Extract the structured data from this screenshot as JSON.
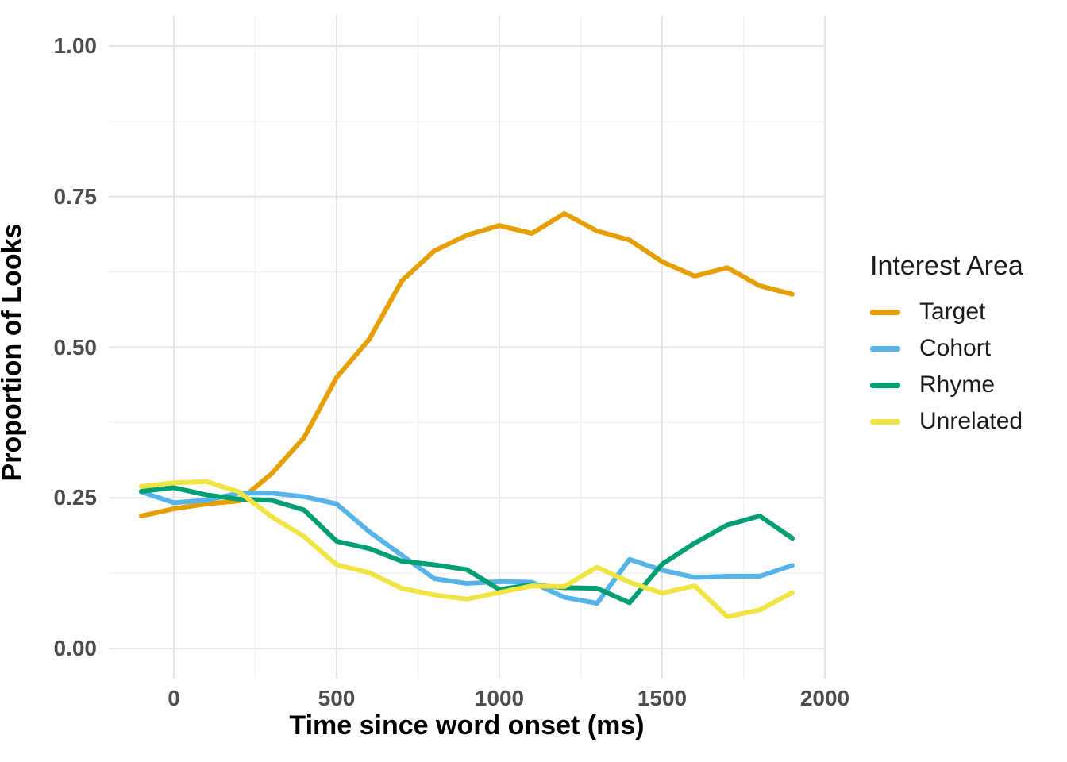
{
  "chart_data": {
    "type": "line",
    "title": "",
    "xlabel": "Time since word onset (ms)",
    "ylabel": "Proportion of Looks",
    "grid": "on",
    "legend": {
      "title": "Interest Area",
      "position": "right"
    },
    "xlim": [
      -200,
      2000
    ],
    "ylim": [
      -0.05,
      1.05
    ],
    "xticks": {
      "values": [
        0,
        500,
        1000,
        1500,
        2000
      ],
      "labels": [
        "0",
        "500",
        "1000",
        "1500",
        "2000"
      ],
      "minor": [
        250,
        750,
        1250,
        1750
      ]
    },
    "yticks": {
      "values": [
        0,
        0.25,
        0.5,
        0.75,
        1
      ],
      "labels": [
        "0.00",
        "0.25",
        "0.50",
        "0.75",
        "1.00"
      ],
      "minor": [
        0.125,
        0.375,
        0.625,
        0.875
      ]
    },
    "x": [
      -100,
      0,
      100,
      200,
      300,
      400,
      500,
      600,
      700,
      800,
      900,
      1000,
      1100,
      1200,
      1300,
      1400,
      1500,
      1600,
      1700,
      1800,
      1900
    ],
    "series": [
      {
        "name": "Target",
        "color": "#E69F00",
        "values": [
          0.22,
          0.232,
          0.24,
          0.245,
          0.29,
          0.35,
          0.45,
          0.513,
          0.61,
          0.66,
          0.686,
          0.702,
          0.689,
          0.722,
          0.693,
          0.678,
          0.642,
          0.618,
          0.632,
          0.602,
          0.588
        ]
      },
      {
        "name": "Cohort",
        "color": "#56B4E9",
        "values": [
          0.26,
          0.242,
          0.246,
          0.258,
          0.258,
          0.252,
          0.24,
          0.194,
          0.155,
          0.116,
          0.108,
          0.111,
          0.11,
          0.085,
          0.075,
          0.148,
          0.13,
          0.118,
          0.12,
          0.12,
          0.138
        ]
      },
      {
        "name": "Rhyme",
        "color": "#009E73",
        "values": [
          0.261,
          0.267,
          0.255,
          0.248,
          0.246,
          0.23,
          0.178,
          0.166,
          0.145,
          0.139,
          0.131,
          0.098,
          0.106,
          0.101,
          0.1,
          0.076,
          0.14,
          0.175,
          0.205,
          0.22,
          0.183
        ]
      },
      {
        "name": "Unrelated",
        "color": "#F0E442",
        "values": [
          0.269,
          0.275,
          0.277,
          0.26,
          0.219,
          0.186,
          0.139,
          0.126,
          0.1,
          0.089,
          0.082,
          0.093,
          0.104,
          0.103,
          0.135,
          0.11,
          0.092,
          0.104,
          0.053,
          0.064,
          0.093
        ]
      }
    ],
    "style": {
      "grid_major_color": "#e4e4e4",
      "grid_minor_color": "#f1f1f1",
      "tick_label_color": "#4d4d4d",
      "line_width": 6
    }
  }
}
